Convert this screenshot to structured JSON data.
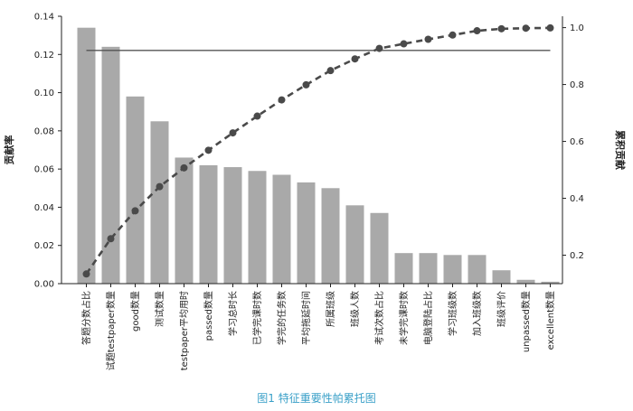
{
  "caption": "图1 特征重要性帕累托图",
  "chart_data": {
    "type": "bar",
    "categories": [
      "答题分数占比",
      "试题testpaper数量",
      "good数量",
      "测试数量",
      "testpaper平均用时",
      "passed数量",
      "学习总时长",
      "已学完课时数",
      "学完的任务数",
      "平均拖延时间",
      "所属班级",
      "班级人数",
      "考试次数占比",
      "未学完课时数",
      "电脑登陆占比",
      "学习班级数",
      "加入班级数",
      "班级评价",
      "unpassed数量",
      "excellent数量"
    ],
    "series": [
      {
        "type": "bar",
        "values": [
          0.134,
          0.124,
          0.098,
          0.085,
          0.066,
          0.062,
          0.061,
          0.059,
          0.057,
          0.053,
          0.05,
          0.041,
          0.037,
          0.016,
          0.016,
          0.015,
          0.015,
          0.007,
          0.002,
          0.001
        ]
      },
      {
        "type": "line",
        "axis": "right",
        "values": [
          0.134,
          0.258,
          0.356,
          0.441,
          0.507,
          0.569,
          0.63,
          0.689,
          0.746,
          0.799,
          0.849,
          0.89,
          0.927,
          0.943,
          0.959,
          0.974,
          0.989,
          0.996,
          0.998,
          0.999
        ]
      }
    ],
    "threshold": {
      "axis": "right",
      "value": 0.92
    },
    "ylabel": "贡献率",
    "y2label": "累积贡献",
    "ylim": [
      0,
      0.14
    ],
    "y2lim": [
      0.1,
      1.04
    ],
    "yticks": [
      "0.00",
      "0.02",
      "0.04",
      "0.06",
      "0.08",
      "0.10",
      "0.12",
      "0.14"
    ],
    "y2ticks": [
      "0.2",
      "0.4",
      "0.6",
      "0.8",
      "1.0"
    ],
    "colors": {
      "bar": "#a9a9a9",
      "line": "#4a4a4a",
      "threshold": "#555555",
      "axis": "#222222"
    }
  }
}
